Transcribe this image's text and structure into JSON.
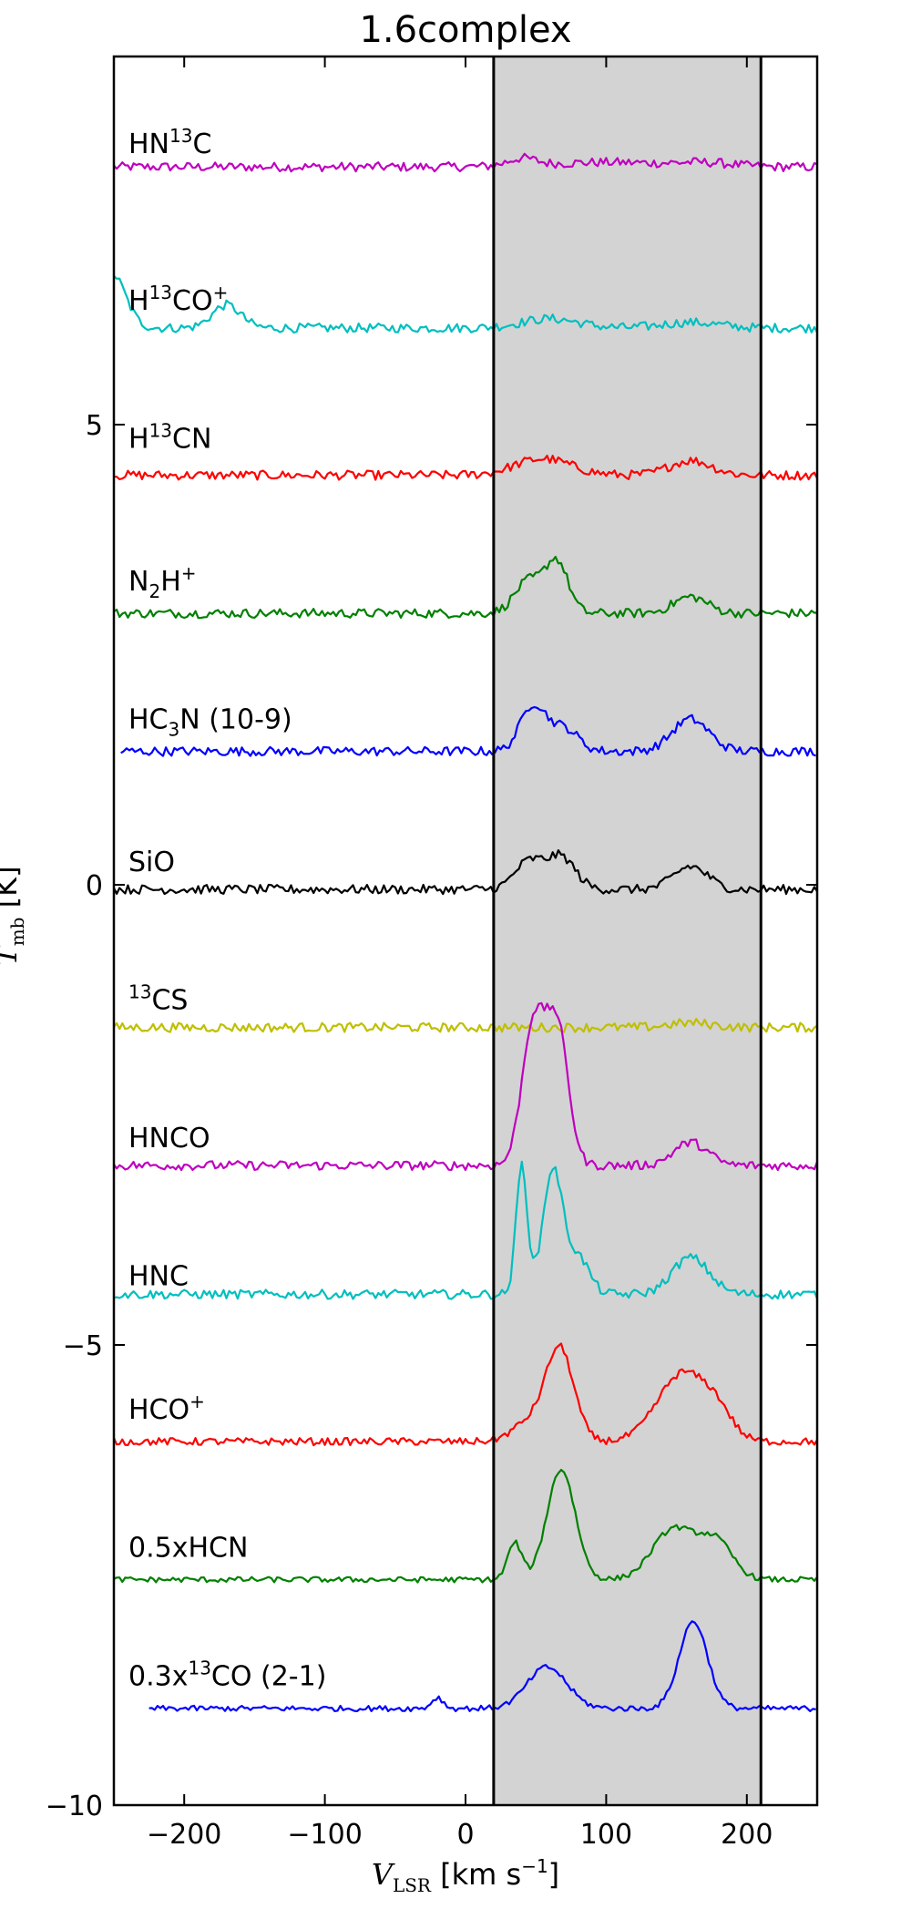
{
  "chart_data": {
    "type": "line",
    "title": "1.6complex",
    "xlabel": "V_LSR [km s^-1]",
    "ylabel": "T_mb [K]",
    "xlim": [
      -250,
      250
    ],
    "ylim": [
      -10,
      9
    ],
    "x_ticks": [
      -200,
      -100,
      0,
      100,
      200
    ],
    "x_tick_labels": [
      "−200",
      "−100",
      "0",
      "100",
      "200"
    ],
    "y_ticks": [
      -10,
      -5,
      0,
      5
    ],
    "y_tick_labels": [
      "−10",
      "−5",
      "0",
      "5"
    ],
    "shaded_region": {
      "x": [
        20,
        210
      ],
      "color": "#d3d3d3",
      "edge_color": "#000000"
    },
    "legend": "none",
    "grid": false,
    "series": [
      {
        "name": "HN13C",
        "label_parts": [
          [
            "HN",
            ""
          ],
          [
            "13",
            "sup"
          ],
          [
            "C",
            ""
          ]
        ],
        "color": "#bf00bf",
        "baseline": 7.8,
        "x_start": -250,
        "noise": 0.05,
        "label_y": 7.95,
        "peaks": [
          [
            40,
            0.08,
            10
          ],
          [
            100,
            0.05,
            40
          ],
          [
            170,
            0.04,
            20
          ]
        ]
      },
      {
        "name": "H13CO+",
        "label_parts": [
          [
            "H",
            ""
          ],
          [
            "13",
            "sup"
          ],
          [
            "CO",
            ""
          ],
          [
            "+",
            "sup"
          ]
        ],
        "color": "#00bfbf",
        "baseline": 6.05,
        "x_start": -250,
        "noise": 0.05,
        "label_y": 6.25,
        "peaks": [
          [
            -252,
            0.6,
            10
          ],
          [
            -170,
            0.25,
            10
          ],
          [
            60,
            0.1,
            20
          ],
          [
            160,
            0.06,
            20
          ]
        ]
      },
      {
        "name": "H13CN",
        "label_parts": [
          [
            "H",
            ""
          ],
          [
            "13",
            "sup"
          ],
          [
            "CN",
            ""
          ]
        ],
        "color": "#ff0000",
        "baseline": 4.45,
        "x_start": -250,
        "noise": 0.05,
        "label_y": 4.75,
        "peaks": [
          [
            55,
            0.18,
            20
          ],
          [
            160,
            0.16,
            15
          ]
        ]
      },
      {
        "name": "N2H+",
        "label_parts": [
          [
            "N",
            ""
          ],
          [
            "2",
            "sub"
          ],
          [
            "H",
            ""
          ],
          [
            "+",
            "sup"
          ]
        ],
        "color": "#008000",
        "baseline": 2.95,
        "x_start": -250,
        "noise": 0.05,
        "label_y": 3.2,
        "peaks": [
          [
            45,
            0.35,
            10
          ],
          [
            65,
            0.55,
            8
          ],
          [
            160,
            0.18,
            12
          ]
        ]
      },
      {
        "name": "HC3N (10-9)",
        "label_parts": [
          [
            "HC",
            ""
          ],
          [
            "3",
            "sub"
          ],
          [
            "N (10-9)",
            ""
          ]
        ],
        "color": "#0000ff",
        "baseline": 1.45,
        "x_start": -245,
        "noise": 0.05,
        "label_y": 1.7,
        "peaks": [
          [
            48,
            0.5,
            9
          ],
          [
            70,
            0.25,
            10
          ],
          [
            160,
            0.35,
            13
          ]
        ]
      },
      {
        "name": "SiO",
        "label_parts": [
          [
            "SiO",
            ""
          ]
        ],
        "color": "#000000",
        "baseline": -0.05,
        "x_start": -250,
        "noise": 0.05,
        "label_y": 0.15,
        "peaks": [
          [
            45,
            0.3,
            10
          ],
          [
            68,
            0.35,
            10
          ],
          [
            160,
            0.25,
            12
          ]
        ]
      },
      {
        "name": "13CS",
        "label_parts": [
          [
            "13",
            "sup"
          ],
          [
            "CS",
            ""
          ]
        ],
        "color": "#bfbf00",
        "baseline": -1.55,
        "x_start": -250,
        "noise": 0.05,
        "label_y": -1.35,
        "peaks": [
          [
            160,
            0.05,
            15
          ]
        ]
      },
      {
        "name": "HNCO",
        "label_parts": [
          [
            "HNCO",
            ""
          ]
        ],
        "color": "#bf00bf",
        "baseline": -3.05,
        "x_start": -250,
        "noise": 0.05,
        "label_y": -2.85,
        "peaks": [
          [
            48,
            1.5,
            8
          ],
          [
            65,
            1.5,
            8
          ],
          [
            160,
            0.25,
            12
          ]
        ]
      },
      {
        "name": "HNC",
        "label_parts": [
          [
            "HNC",
            ""
          ]
        ],
        "color": "#00bfbf",
        "baseline": -4.45,
        "x_start": -250,
        "noise": 0.05,
        "label_y": -4.35,
        "peaks": [
          [
            40,
            1.4,
            4
          ],
          [
            62,
            1.35,
            7
          ],
          [
            80,
            0.4,
            8
          ],
          [
            160,
            0.4,
            13
          ]
        ]
      },
      {
        "name": "HCO+",
        "label_parts": [
          [
            "HCO",
            ""
          ],
          [
            "+",
            "sup"
          ]
        ],
        "color": "#ff0000",
        "baseline": -6.05,
        "x_start": -250,
        "noise": 0.04,
        "label_y": -5.8,
        "peaks": [
          [
            45,
            0.2,
            12
          ],
          [
            67,
            1.0,
            10
          ],
          [
            155,
            0.75,
            18
          ],
          [
            180,
            0.2,
            10
          ]
        ]
      },
      {
        "name": "0.5xHCN",
        "label_parts": [
          [
            "0.5xHCN",
            ""
          ]
        ],
        "color": "#008000",
        "baseline": -7.55,
        "x_start": -250,
        "noise": 0.03,
        "label_y": -7.3,
        "peaks": [
          [
            35,
            0.4,
            5
          ],
          [
            68,
            1.2,
            10
          ],
          [
            148,
            0.55,
            15
          ],
          [
            178,
            0.4,
            12
          ]
        ]
      },
      {
        "name": "0.3x13CO (2-1)",
        "label_parts": [
          [
            "0.3x",
            ""
          ],
          [
            "13",
            "sup"
          ],
          [
            "CO (2-1)",
            ""
          ]
        ],
        "color": "#0000ff",
        "baseline": -8.95,
        "x_start": -225,
        "noise": 0.03,
        "label_y": -8.7,
        "peaks": [
          [
            -20,
            0.12,
            4
          ],
          [
            58,
            0.45,
            14
          ],
          [
            162,
            0.95,
            10
          ]
        ]
      }
    ]
  }
}
